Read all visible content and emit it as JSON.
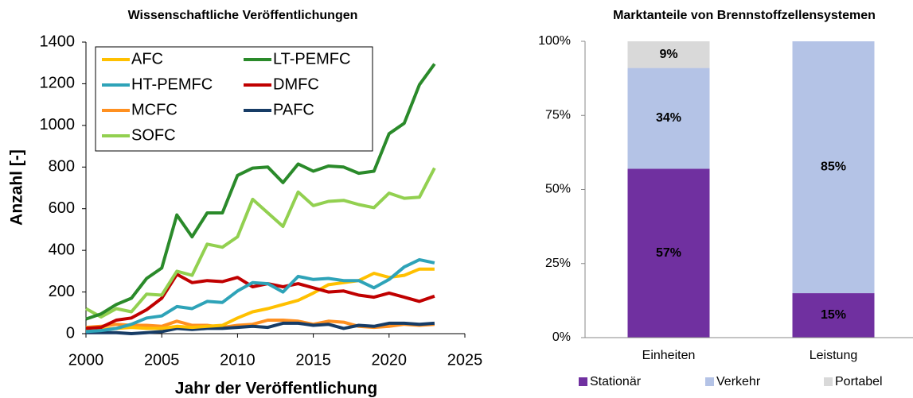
{
  "chart_data": [
    {
      "type": "line",
      "title": "Wissenschaftliche Veröffentlichungen",
      "xlabel": "Jahr der Veröffentlichung",
      "ylabel": "Anzahl [-]",
      "x": [
        2000,
        2001,
        2002,
        2003,
        2004,
        2005,
        2006,
        2007,
        2008,
        2009,
        2010,
        2011,
        2012,
        2013,
        2014,
        2015,
        2016,
        2017,
        2018,
        2019,
        2020,
        2021,
        2022,
        2023
      ],
      "xlim": [
        2000,
        2025
      ],
      "xticks": [
        2000,
        2005,
        2010,
        2015,
        2020,
        2025
      ],
      "ylim": [
        0,
        1400
      ],
      "yticks": [
        0,
        200,
        400,
        600,
        800,
        1000,
        1200,
        1400
      ],
      "grid": false,
      "legend": "upper left",
      "series": [
        {
          "name": "AFC",
          "color": "#ffc000",
          "values": [
            20,
            20,
            25,
            30,
            25,
            25,
            35,
            30,
            35,
            40,
            75,
            105,
            120,
            140,
            160,
            195,
            235,
            245,
            255,
            290,
            270,
            280,
            310,
            310
          ]
        },
        {
          "name": "LT-PEMFC",
          "color": "#2a8a2a",
          "values": [
            70,
            95,
            140,
            170,
            265,
            315,
            570,
            465,
            580,
            580,
            760,
            795,
            800,
            725,
            815,
            780,
            805,
            800,
            770,
            780,
            960,
            1010,
            1195,
            1295
          ]
        },
        {
          "name": "HT-PEMFC",
          "color": "#2ea3b8",
          "values": [
            10,
            15,
            25,
            45,
            75,
            85,
            130,
            120,
            155,
            150,
            205,
            245,
            240,
            200,
            275,
            260,
            265,
            255,
            255,
            220,
            260,
            320,
            355,
            340
          ]
        },
        {
          "name": "DMFC",
          "color": "#c00000",
          "values": [
            25,
            30,
            65,
            75,
            115,
            170,
            285,
            245,
            255,
            250,
            270,
            225,
            240,
            225,
            240,
            220,
            200,
            205,
            185,
            175,
            195,
            175,
            155,
            180
          ]
        },
        {
          "name": "MCFC",
          "color": "#ff9020",
          "values": [
            30,
            35,
            45,
            40,
            40,
            35,
            60,
            40,
            40,
            30,
            40,
            45,
            65,
            65,
            60,
            45,
            60,
            55,
            35,
            30,
            35,
            45,
            40,
            45
          ]
        },
        {
          "name": "PAFC",
          "color": "#173c66",
          "values": [
            5,
            5,
            5,
            0,
            5,
            10,
            25,
            20,
            25,
            25,
            30,
            35,
            30,
            50,
            50,
            40,
            45,
            25,
            40,
            35,
            50,
            50,
            45,
            50
          ]
        },
        {
          "name": "SOFC",
          "color": "#92d050",
          "values": [
            120,
            80,
            120,
            105,
            190,
            185,
            300,
            280,
            430,
            415,
            465,
            645,
            580,
            515,
            680,
            615,
            635,
            640,
            620,
            605,
            675,
            650,
            655,
            795
          ]
        }
      ]
    },
    {
      "type": "stacked_bar",
      "title": "Marktanteile von Brennstoffzellensystemen",
      "categories": [
        "Einheiten",
        "Leistung"
      ],
      "ylim": [
        0,
        100
      ],
      "yticks": [
        {
          "value": 0,
          "label": "0%"
        },
        {
          "value": 25,
          "label": "25%"
        },
        {
          "value": 50,
          "label": "50%"
        },
        {
          "value": 75,
          "label": "75%"
        },
        {
          "value": 100,
          "label": "100%"
        }
      ],
      "legend": "bottom",
      "series": [
        {
          "name": "Stationär",
          "color": "#7030a0",
          "values": [
            57,
            15
          ],
          "value_labels": [
            "57%",
            "15%"
          ]
        },
        {
          "name": "Verkehr",
          "color": "#b4c3e6",
          "values": [
            34,
            85
          ],
          "value_labels": [
            "34%",
            "85%"
          ]
        },
        {
          "name": "Portabel",
          "color": "#d9d9d9",
          "values": [
            9,
            0
          ],
          "value_labels": [
            "9%",
            null
          ]
        }
      ]
    }
  ]
}
